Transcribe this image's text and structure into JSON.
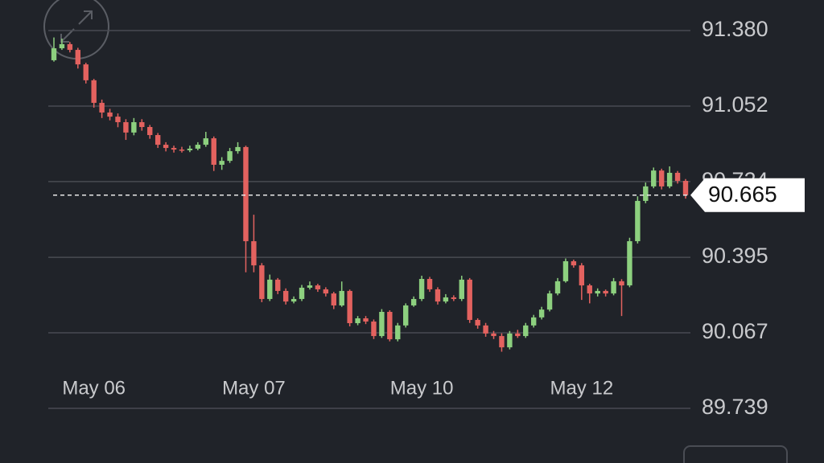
{
  "chart_data": {
    "type": "candlestick",
    "categories": [
      null,
      null,
      null,
      null,
      null,
      "May 06",
      null,
      null,
      null,
      null,
      null,
      null,
      null,
      null,
      null,
      null,
      null,
      null,
      null,
      null,
      null,
      null,
      null,
      null,
      null,
      "May 07",
      null,
      null,
      null,
      null,
      null,
      null,
      null,
      null,
      null,
      null,
      null,
      null,
      null,
      null,
      null,
      null,
      null,
      null,
      null,
      null,
      "May 10",
      null,
      null,
      null,
      null,
      null,
      null,
      null,
      null,
      null,
      null,
      null,
      null,
      null,
      null,
      null,
      null,
      null,
      null,
      null,
      "May 12",
      null,
      null,
      null,
      null,
      null,
      null,
      null,
      null,
      null,
      null,
      null,
      null,
      null
    ],
    "open": [
      91.251,
      91.303,
      91.321,
      91.296,
      91.233,
      91.164,
      91.066,
      91.024,
      91.006,
      90.982,
      90.937,
      90.982,
      90.961,
      90.926,
      90.884,
      90.87,
      90.863,
      90.86,
      90.867,
      90.884,
      90.912,
      90.797,
      90.814,
      90.856,
      90.874,
      90.465,
      90.36,
      90.214,
      90.298,
      90.249,
      90.203,
      90.214,
      90.263,
      90.273,
      90.256,
      90.238,
      90.186,
      90.249,
      90.109,
      90.13,
      90.116,
      90.053,
      90.158,
      90.039,
      90.099,
      90.186,
      90.214,
      90.301,
      90.256,
      90.203,
      90.221,
      90.214,
      90.298,
      90.123,
      90.099,
      90.064,
      90.053,
      90.004,
      90.064,
      90.053,
      90.099,
      90.134,
      90.168,
      90.238,
      90.291,
      90.378,
      90.36,
      90.273,
      90.238,
      90.249,
      90.238,
      90.291,
      90.273,
      90.465,
      90.64,
      90.703,
      90.772,
      90.703,
      90.762,
      90.727
    ],
    "high": [
      91.35,
      91.345,
      91.33,
      91.305,
      91.24,
      91.17,
      91.08,
      91.04,
      91.02,
      90.995,
      91.0,
      90.995,
      90.97,
      90.935,
      90.895,
      90.88,
      90.875,
      90.88,
      90.895,
      90.94,
      90.92,
      90.83,
      90.87,
      90.895,
      90.88,
      90.58,
      90.37,
      90.32,
      90.305,
      90.26,
      90.225,
      90.275,
      90.29,
      90.28,
      90.265,
      90.245,
      90.29,
      90.255,
      90.14,
      90.14,
      90.125,
      90.17,
      90.165,
      90.11,
      90.195,
      90.225,
      90.315,
      90.31,
      90.265,
      90.235,
      90.23,
      90.315,
      90.305,
      90.13,
      90.11,
      90.075,
      90.065,
      90.075,
      90.08,
      90.11,
      90.145,
      90.18,
      90.25,
      90.305,
      90.39,
      90.385,
      90.37,
      90.28,
      90.26,
      90.255,
      90.305,
      90.3,
      90.48,
      90.66,
      90.72,
      90.785,
      90.78,
      90.79,
      90.77,
      90.735
    ],
    "low": [
      91.245,
      91.296,
      91.285,
      91.215,
      91.15,
      91.045,
      91.0,
      90.99,
      90.96,
      90.905,
      90.925,
      90.945,
      90.91,
      90.87,
      90.855,
      90.85,
      90.85,
      90.852,
      90.86,
      90.875,
      90.77,
      90.775,
      90.805,
      90.845,
      90.33,
      90.33,
      90.2,
      90.205,
      90.235,
      90.19,
      90.195,
      90.205,
      90.255,
      90.245,
      90.225,
      90.17,
      90.18,
      90.095,
      90.1,
      90.105,
      90.04,
      90.045,
      90.03,
      90.03,
      90.09,
      90.18,
      90.205,
      90.245,
      90.19,
      90.195,
      90.205,
      90.205,
      90.11,
      90.085,
      90.05,
      90.04,
      89.985,
      89.995,
      90.045,
      90.045,
      90.09,
      90.125,
      90.16,
      90.23,
      90.285,
      90.35,
      90.21,
      90.195,
      90.225,
      90.225,
      90.23,
      90.14,
      90.265,
      90.455,
      90.63,
      90.695,
      90.69,
      90.695,
      90.715,
      90.65
    ],
    "close": [
      91.303,
      91.321,
      91.296,
      91.233,
      91.164,
      91.066,
      91.024,
      91.006,
      90.982,
      90.937,
      90.982,
      90.961,
      90.926,
      90.884,
      90.87,
      90.863,
      90.86,
      90.867,
      90.884,
      90.912,
      90.797,
      90.814,
      90.856,
      90.874,
      90.465,
      90.36,
      90.214,
      90.298,
      90.249,
      90.203,
      90.214,
      90.263,
      90.273,
      90.256,
      90.238,
      90.186,
      90.249,
      90.109,
      90.13,
      90.116,
      90.053,
      90.158,
      90.039,
      90.099,
      90.186,
      90.214,
      90.301,
      90.256,
      90.203,
      90.221,
      90.214,
      90.298,
      90.123,
      90.099,
      90.064,
      90.053,
      90.004,
      90.064,
      90.053,
      90.099,
      90.134,
      90.168,
      90.238,
      90.291,
      90.378,
      90.36,
      90.273,
      90.238,
      90.249,
      90.238,
      90.291,
      90.273,
      90.465,
      90.64,
      90.703,
      90.772,
      90.703,
      90.762,
      90.727,
      90.665
    ],
    "up_color": "#8dd07f",
    "down_color": "#e3625f",
    "last_value": 90.665,
    "ylim": [
      89.739,
      91.38
    ],
    "yticks": [
      {
        "value": 91.38,
        "label": "91.380"
      },
      91.052,
      90.724,
      90.395,
      90.067,
      89.739
    ],
    "grid": true
  }
}
